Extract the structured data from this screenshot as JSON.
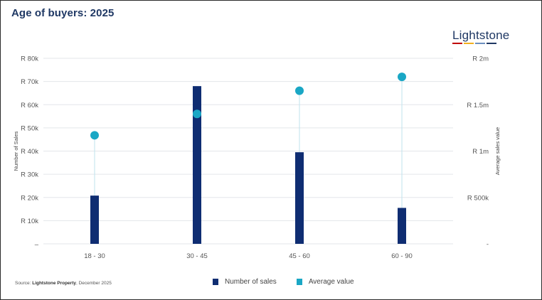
{
  "header": {
    "title": "Age of buyers: 2025"
  },
  "logo": {
    "text": "Lightstone",
    "bar_colors": [
      "#c00000",
      "#f2b01e",
      "#6c8fc0",
      "#1f3864"
    ]
  },
  "source": {
    "prefix": "Source: ",
    "name": "Lightstone Property",
    "suffix": ", December 2025"
  },
  "chart_data": {
    "type": "bar",
    "title": "Age of buyers: 2025",
    "categories": [
      "18 - 30",
      "30 - 45",
      "45 - 60",
      "60 - 90"
    ],
    "series": [
      {
        "name": "Number of sales",
        "type": "bar",
        "axis": "left",
        "color": "#0f2d72",
        "values": [
          20800,
          68000,
          39500,
          15500
        ]
      },
      {
        "name": "Average value",
        "type": "scatter",
        "axis": "right",
        "color": "#1aa7c5",
        "values": [
          1170000,
          1400000,
          1650000,
          1800000
        ]
      }
    ],
    "ylabel": "Number of Sales",
    "y2label": "Average sales value",
    "ylim": [
      0,
      80000
    ],
    "y2lim": [
      0,
      2000000
    ],
    "yticks": [
      {
        "value": 0,
        "label": "–"
      },
      {
        "value": 10000,
        "label": "R 10k"
      },
      {
        "value": 20000,
        "label": "R 20k"
      },
      {
        "value": 30000,
        "label": "R 30k"
      },
      {
        "value": 40000,
        "label": "R 40k"
      },
      {
        "value": 50000,
        "label": "R 50k"
      },
      {
        "value": 60000,
        "label": "R 60k"
      },
      {
        "value": 70000,
        "label": "R 70k"
      },
      {
        "value": 80000,
        "label": "R 80k"
      }
    ],
    "y2ticks": [
      {
        "value": 0,
        "label": "-"
      },
      {
        "value": 500000,
        "label": "R 500k"
      },
      {
        "value": 1000000,
        "label": "R 1m"
      },
      {
        "value": 1500000,
        "label": "R 1.5m"
      },
      {
        "value": 2000000,
        "label": "R 2m"
      }
    ],
    "grid": true,
    "legend": "bottom-center"
  }
}
